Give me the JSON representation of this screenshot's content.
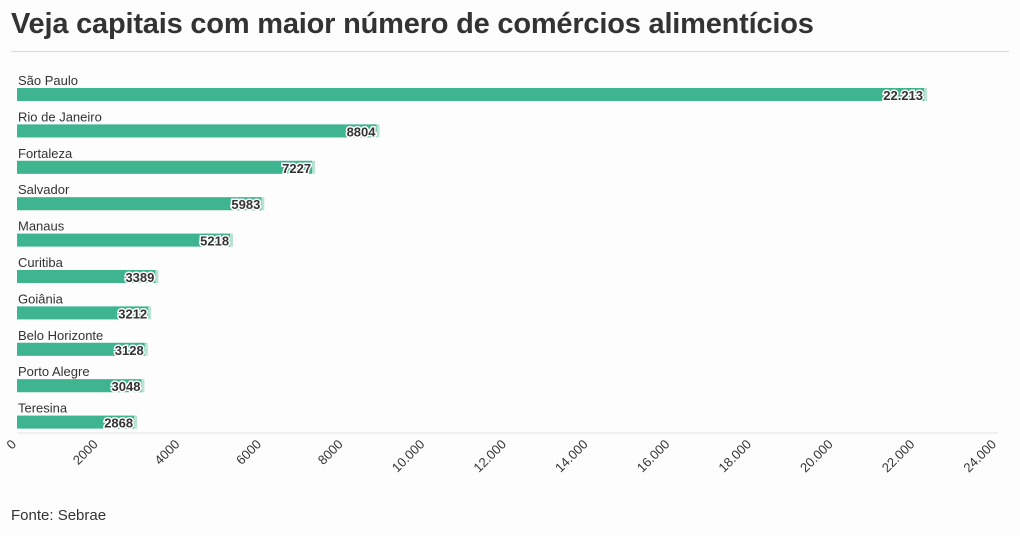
{
  "title": "Veja capitais com maior número de comércios alimentícios",
  "source": "Fonte: Sebrae",
  "colors": {
    "bar": "#3fb58f",
    "bar_edge": "#b9e4d3",
    "text": "#333333",
    "axis": "#e3e3e3"
  },
  "chart_data": {
    "type": "bar",
    "orientation": "horizontal",
    "title": "Veja capitais com maior número de comércios alimentícios",
    "xlabel": "",
    "ylabel": "",
    "categories": [
      "São Paulo",
      "Rio de Janeiro",
      "Fortaleza",
      "Salvador",
      "Manaus",
      "Curitiba",
      "Goiânia",
      "Belo Horizonte",
      "Porto Alegre",
      "Teresina"
    ],
    "values": [
      22213,
      8804,
      7227,
      5983,
      5218,
      3389,
      3212,
      3128,
      3048,
      2868
    ],
    "value_labels": [
      "22.213",
      "8804",
      "7227",
      "5983",
      "5218",
      "3389",
      "3212",
      "3128",
      "3048",
      "2868"
    ],
    "xlim": [
      0,
      24000
    ],
    "x_ticks": [
      0,
      2000,
      4000,
      6000,
      8000,
      10000,
      12000,
      14000,
      16000,
      18000,
      20000,
      22000,
      24000
    ],
    "x_tick_labels": [
      "0",
      "2000",
      "4000",
      "6000",
      "8000",
      "10.000",
      "12.000",
      "14.000",
      "16.000",
      "18.000",
      "20.000",
      "22.000",
      "24.000"
    ],
    "grid": false,
    "legend": "none"
  }
}
